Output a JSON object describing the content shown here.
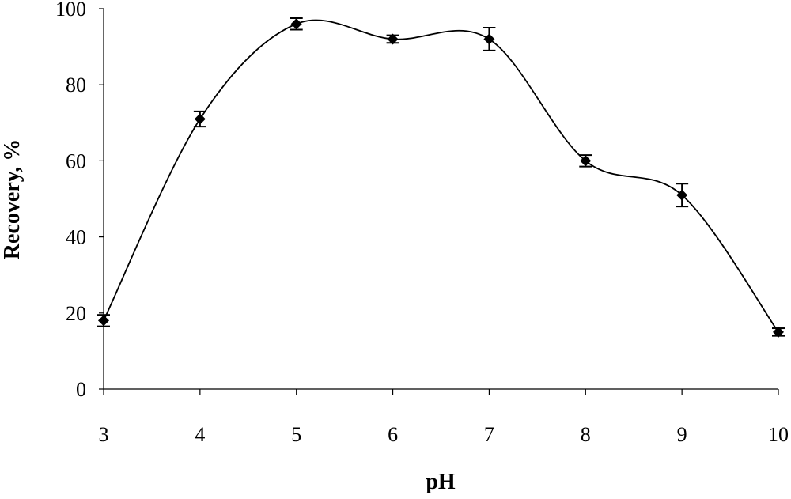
{
  "chart_data": {
    "type": "line",
    "xlabel": "pH",
    "ylabel": "Recovery, %",
    "xlim": [
      3,
      10
    ],
    "ylim": [
      0,
      100
    ],
    "x_ticks": [
      "3",
      "4",
      "5",
      "6",
      "7",
      "8",
      "9",
      "10"
    ],
    "y_ticks": [
      "0",
      "20",
      "40",
      "60",
      "80",
      "100"
    ],
    "grid": false,
    "legend": "none",
    "line_color": "#000000",
    "marker": "diamond",
    "series": [
      {
        "x": [
          3,
          4,
          5,
          6,
          7,
          8,
          9,
          10
        ],
        "values": [
          18,
          71,
          96,
          92,
          92,
          60,
          51,
          15
        ],
        "error": [
          1.5,
          2,
          1.5,
          1,
          3,
          1.5,
          3,
          1
        ]
      }
    ]
  }
}
